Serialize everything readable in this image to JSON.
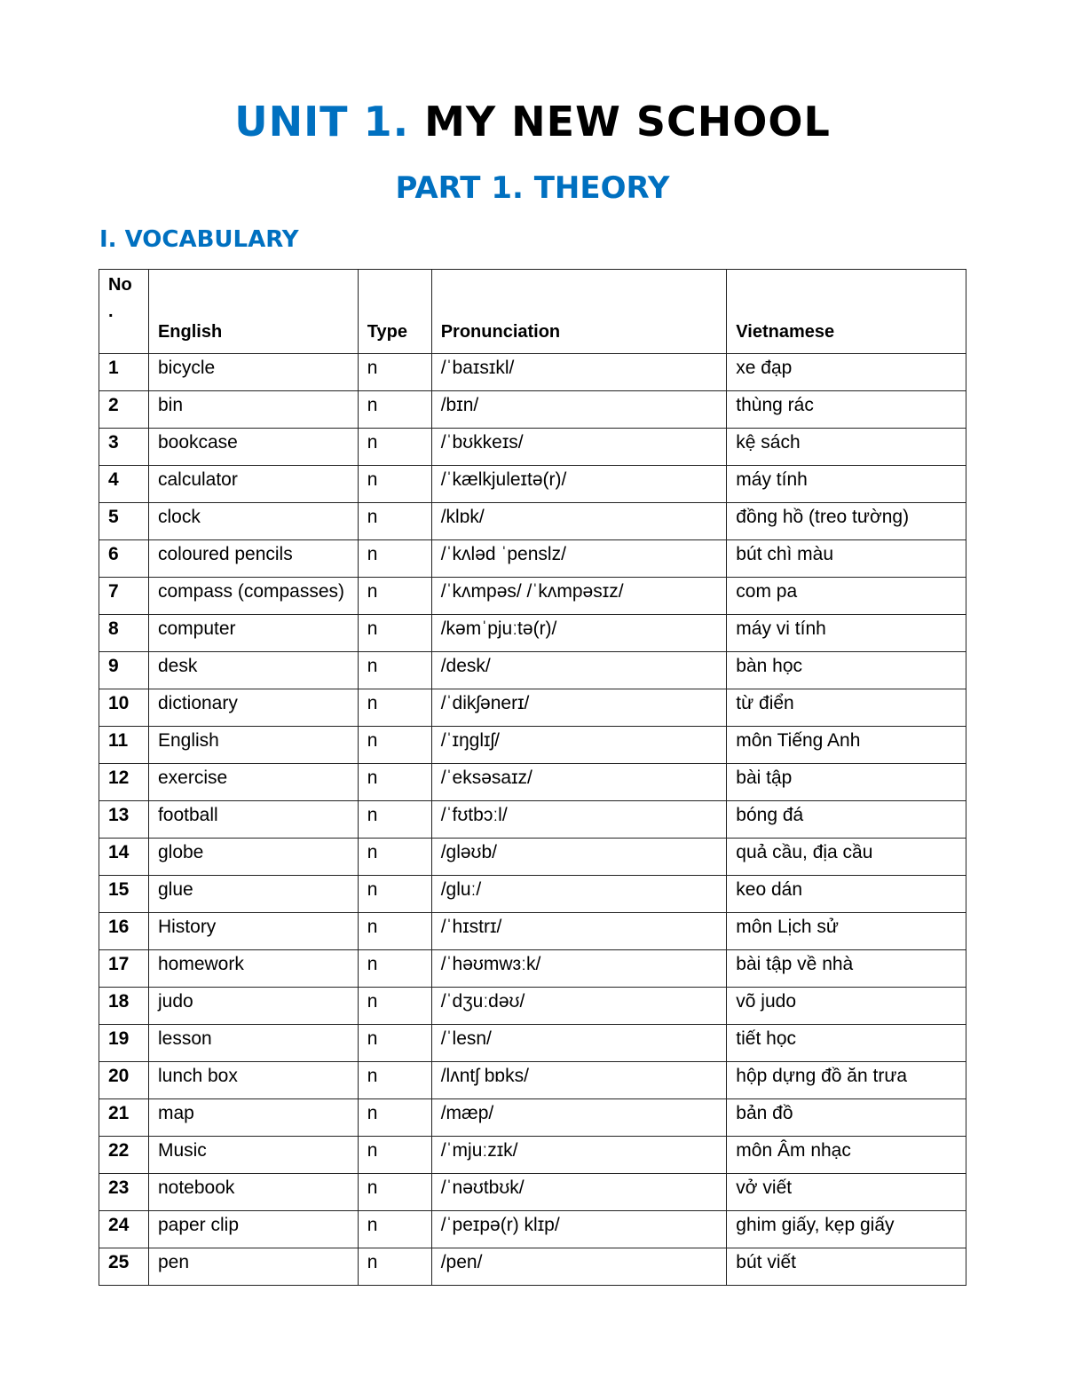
{
  "title": {
    "unit": "UNIT 1.",
    "name": "MY NEW SCHOOL"
  },
  "part": "PART 1. THEORY",
  "section": "I. VOCABULARY",
  "colors": {
    "heading_blue": "#0070c0"
  },
  "table": {
    "headers": {
      "no_line1": "No",
      "no_line2": ".",
      "english": "English",
      "type": "Type",
      "pronunciation": "Pronunciation",
      "vietnamese": "Vietnamese"
    },
    "rows": [
      [
        "1",
        "bicycle",
        "n",
        "/ˈbaɪsɪkl/",
        "xe đạp"
      ],
      [
        "2",
        "bin",
        "n",
        "/bɪn/",
        "thùng rác"
      ],
      [
        "3",
        "bookcase",
        "n",
        "/ˈbʊkkeɪs/",
        "kệ sách"
      ],
      [
        "4",
        "calculator",
        "n",
        "/ˈkælkjuleɪtə(r)/",
        "máy tính"
      ],
      [
        "5",
        "clock",
        "n",
        "/klɒk/",
        "đồng hồ (treo tường)"
      ],
      [
        "6",
        "coloured pencils",
        "n",
        "/ˈkʌləd ˈpenslz/",
        "bút chì màu"
      ],
      [
        "7",
        "compass (compasses)",
        "n",
        "/ˈkʌmpəs/ /ˈkʌmpəsɪz/",
        "com pa"
      ],
      [
        "8",
        "computer",
        "n",
        "/kəmˈpjuːtə(r)/",
        "máy vi tính"
      ],
      [
        "9",
        "desk",
        "n",
        "/desk/",
        "bàn học"
      ],
      [
        "10",
        "dictionary",
        "n",
        "/ˈdikʃənerɪ/",
        "từ điển"
      ],
      [
        "11",
        "English",
        "n",
        "/ˈɪŋglɪʃ/",
        "môn Tiếng Anh"
      ],
      [
        "12",
        "exercise",
        "n",
        "/ˈeksəsaɪz/",
        "bài tập"
      ],
      [
        "13",
        "football",
        "n",
        "/ˈfʊtbɔːl/",
        "bóng đá"
      ],
      [
        "14",
        "globe",
        "n",
        "/gləʊb/",
        "quả cầu, địa cầu"
      ],
      [
        "15",
        "glue",
        "n",
        "/gluː/",
        "keo dán"
      ],
      [
        "16",
        "History",
        "n",
        "/ˈhɪstrɪ/",
        "môn Lịch sử"
      ],
      [
        "17",
        "homework",
        "n",
        "/ˈhəʊmwɜːk/",
        "bài tập về nhà"
      ],
      [
        "18",
        "judo",
        "n",
        "/ˈdʒuːdəʊ/",
        "võ judo"
      ],
      [
        "19",
        "lesson",
        "n",
        "/ˈlesn/",
        "tiết học"
      ],
      [
        "20",
        "lunch box",
        "n",
        "/lʌntʃ bɒks/",
        "hộp dựng đồ ăn trưa"
      ],
      [
        "21",
        "map",
        "n",
        "/mæp/",
        "bản đồ"
      ],
      [
        "22",
        "Music",
        "n",
        "/ˈmjuːzɪk/",
        "môn Âm nhạc"
      ],
      [
        "23",
        "notebook",
        "n",
        "/ˈnəʊtbʊk/",
        "vở viết"
      ],
      [
        "24",
        "paper clip",
        "n",
        "/ˈpeɪpə(r) klɪp/",
        "ghim giấy, kẹp giấy"
      ],
      [
        "25",
        "pen",
        "n",
        "/pen/",
        "bút viết"
      ]
    ]
  }
}
